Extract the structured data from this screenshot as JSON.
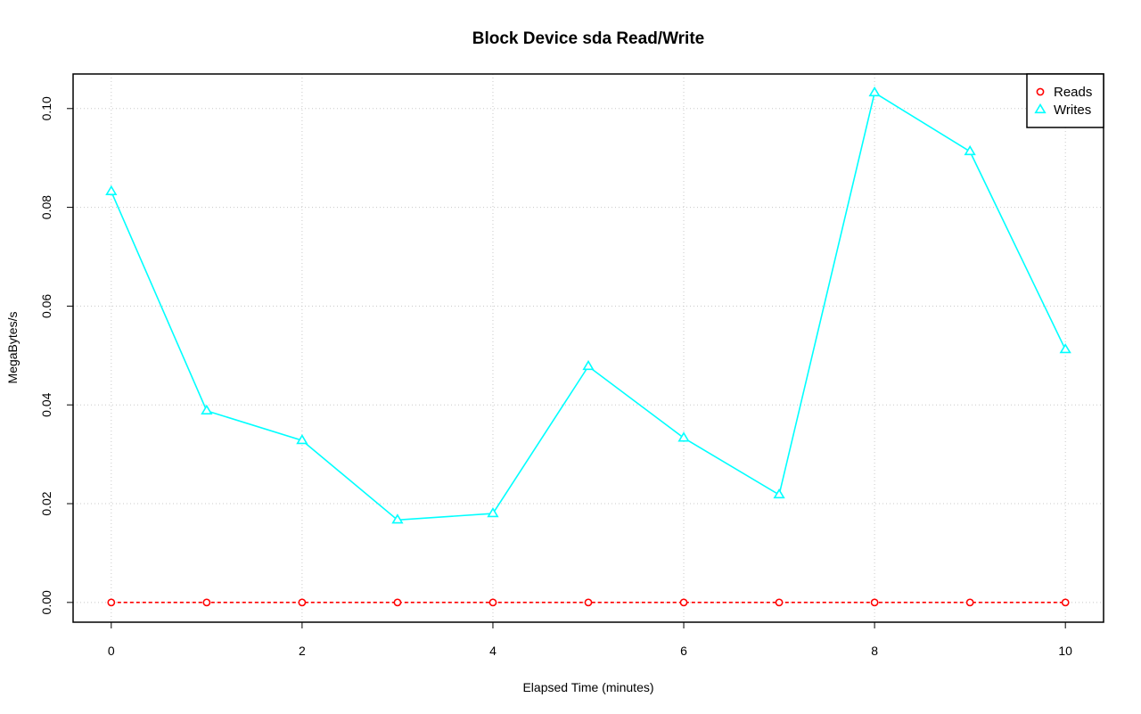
{
  "chart_data": {
    "type": "line",
    "title": "Block Device sda Read/Write",
    "xlabel": "Elapsed Time (minutes)",
    "ylabel": "MegaBytes/s",
    "x": [
      0,
      1,
      2,
      3,
      4,
      5,
      6,
      7,
      8,
      9,
      10
    ],
    "xlim": [
      -0.4,
      10.4
    ],
    "ylim": [
      -0.004,
      0.107
    ],
    "xticks": [
      0,
      2,
      4,
      6,
      8,
      10
    ],
    "xtick_labels": [
      "0",
      "2",
      "4",
      "6",
      "8",
      "10"
    ],
    "yticks": [
      0.0,
      0.02,
      0.04,
      0.06,
      0.08,
      0.1
    ],
    "ytick_labels": [
      "0.00",
      "0.02",
      "0.04",
      "0.06",
      "0.08",
      "0.10"
    ],
    "grid": true,
    "legend_position": "top-right",
    "series": [
      {
        "name": "Reads",
        "color": "#ff0000",
        "marker": "circle",
        "line_style": "dashed",
        "values": [
          0,
          0,
          0,
          0,
          0,
          0,
          0,
          0,
          0,
          0,
          0
        ]
      },
      {
        "name": "Writes",
        "color": "#00ffff",
        "marker": "triangle",
        "line_style": "solid",
        "values": [
          0.0832,
          0.0388,
          0.0328,
          0.0167,
          0.018,
          0.0478,
          0.0333,
          0.0218,
          0.1032,
          0.0913,
          0.0512
        ]
      }
    ]
  }
}
